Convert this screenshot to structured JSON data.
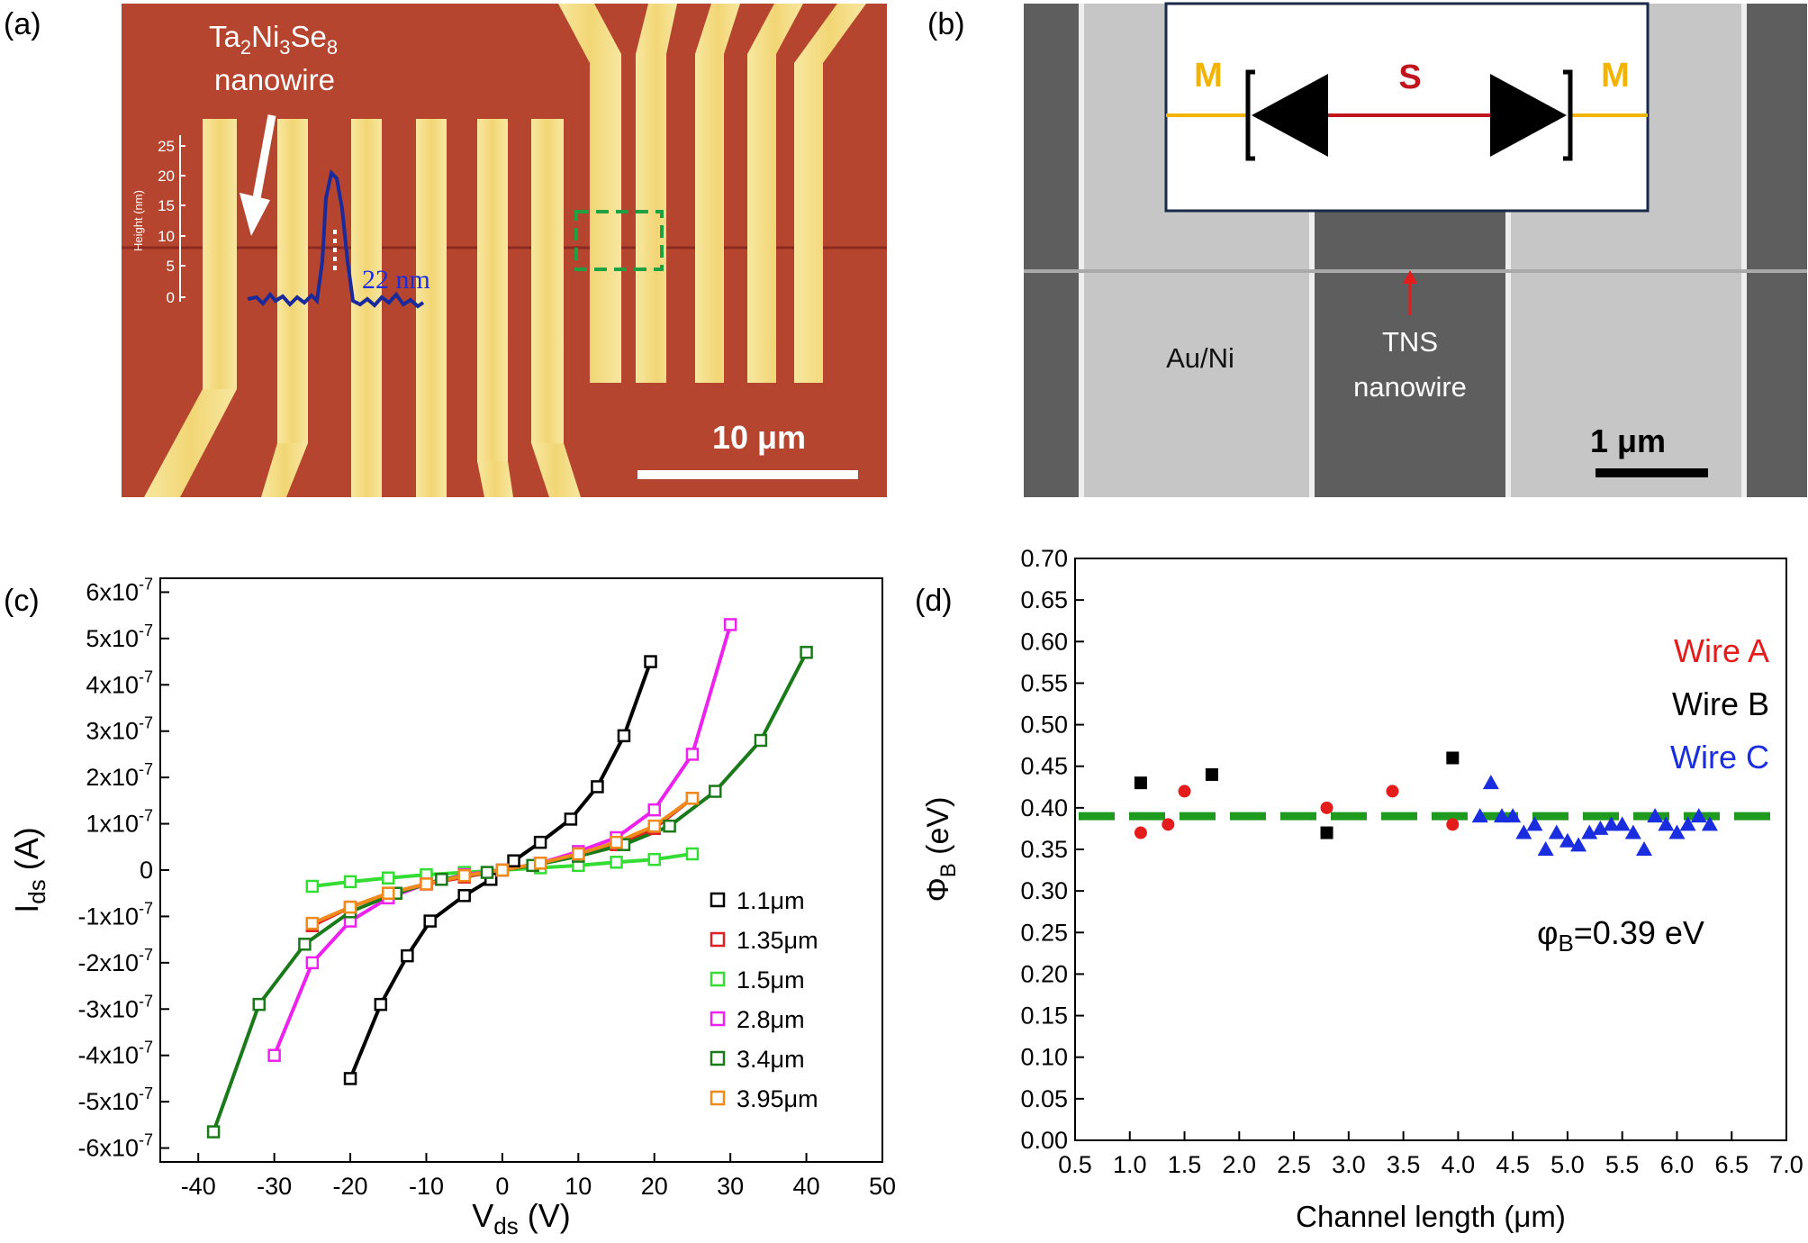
{
  "panels": {
    "a": {
      "label": "(a)",
      "material_main": "Ta",
      "material_sub1": "2",
      "material_mid": "Ni",
      "material_sub2": "3",
      "material_end": "Se",
      "material_sub3": "8",
      "nanowire_word": "nanowire",
      "height_axis_label": "Height (nm)",
      "height_ticks": [
        "25",
        "20",
        "15",
        "10",
        "5",
        "0"
      ],
      "profile_annotation": "22 nm",
      "scale_bar": "10 μm"
    },
    "b": {
      "label": "(b)",
      "inset_left": "M",
      "inset_center": "S",
      "inset_right": "M",
      "electrode_label": "Au/Ni",
      "wire_label_1": "TNS",
      "wire_label_2": "nanowire",
      "scale_bar": "1 μm"
    },
    "c": {
      "label": "(c)"
    },
    "d": {
      "label": "(d)",
      "phi_label_main": "φ",
      "phi_label_sub": "B",
      "phi_label_value": "=0.39 eV"
    }
  },
  "colors": {
    "afm_bg": "#b5452f",
    "electrode": "#f3dd82",
    "sem_bg": "#6a6a6a",
    "sem_electrode": "#c9c9c9",
    "green_dash": "#1e9a1e"
  },
  "chart_data": [
    {
      "type": "line",
      "title": "",
      "xlabel_main": "V",
      "xlabel_sub": "ds",
      "xlabel_unit": " (V)",
      "ylabel_main": "I",
      "ylabel_sub": "ds",
      "ylabel_unit": " (A)",
      "xlim": [
        -45,
        50
      ],
      "ylim": [
        -6.3e-07,
        6.3e-07
      ],
      "xticks": [
        -40,
        -30,
        -20,
        -10,
        0,
        10,
        20,
        30,
        40,
        50
      ],
      "xtick_labels": [
        "-40",
        "-30",
        "-20",
        "-10",
        "0",
        "10",
        "20",
        "30",
        "40",
        "50"
      ],
      "yticks_e7": [
        6,
        5,
        4,
        3,
        2,
        1,
        0,
        -1,
        -2,
        -3,
        -4,
        -5,
        -6
      ],
      "ytick_labels": [
        "6x10-7",
        "5x10-7",
        "4x10-7",
        "3x10-7",
        "2x10-7",
        "1x10-7",
        "0",
        "-1x10-7",
        "-2x10-7",
        "-3x10-7",
        "-4x10-7",
        "-5x10-7",
        "-6x10-7"
      ],
      "legend_position": "bottom-right",
      "series": [
        {
          "name": "1.1μm",
          "color": "#000000",
          "x": [
            -20,
            -16,
            -12.5,
            -9.5,
            -5,
            -1.5,
            1.5,
            5,
            9,
            12.5,
            16,
            19.5
          ],
          "y": [
            -4.5,
            -2.9,
            -1.85,
            -1.1,
            -0.55,
            -0.2,
            0.2,
            0.6,
            1.1,
            1.8,
            2.9,
            4.5
          ]
        },
        {
          "name": "1.35μm",
          "color": "#e02020",
          "x": [
            -25,
            -20,
            -15,
            -10,
            -5,
            0,
            5,
            10,
            15,
            20,
            25
          ],
          "y": [
            -1.2,
            -0.8,
            -0.5,
            -0.3,
            -0.15,
            0,
            0.15,
            0.3,
            0.55,
            0.9,
            1.55
          ]
        },
        {
          "name": "1.5μm",
          "color": "#33dd33",
          "x": [
            -25,
            -20,
            -15,
            -10,
            -5,
            0,
            5,
            10,
            15,
            20,
            25
          ],
          "y": [
            -0.35,
            -0.25,
            -0.17,
            -0.1,
            -0.05,
            0,
            0.05,
            0.1,
            0.17,
            0.23,
            0.35
          ]
        },
        {
          "name": "2.8μm",
          "color": "#ee22ee",
          "x": [
            -30,
            -25,
            -20,
            -15,
            -10,
            -5,
            0,
            5,
            10,
            15,
            20,
            25,
            30
          ],
          "y": [
            -4.0,
            -2.0,
            -1.1,
            -0.6,
            -0.3,
            -0.1,
            0,
            0.15,
            0.4,
            0.7,
            1.3,
            2.5,
            5.3
          ]
        },
        {
          "name": "3.4μm",
          "color": "#1a7a1a",
          "x": [
            -38,
            -32,
            -26,
            -20,
            -14,
            -8,
            -2,
            4,
            10,
            16,
            22,
            28,
            34,
            40
          ],
          "y": [
            -5.65,
            -2.9,
            -1.6,
            -0.9,
            -0.5,
            -0.2,
            -0.05,
            0.1,
            0.3,
            0.55,
            0.95,
            1.7,
            2.8,
            4.7
          ]
        },
        {
          "name": "3.95μm",
          "color": "#f08a1a",
          "x": [
            -25,
            -20,
            -15,
            -10,
            -5,
            0,
            5,
            10,
            15,
            20,
            25
          ],
          "y": [
            -1.15,
            -0.8,
            -0.5,
            -0.3,
            -0.12,
            0,
            0.15,
            0.35,
            0.6,
            0.95,
            1.55
          ]
        }
      ]
    },
    {
      "type": "scatter",
      "title": "",
      "xlabel": "Channel length (μm)",
      "ylabel_main": "Φ",
      "ylabel_sub": "B",
      "ylabel_unit": " (eV)",
      "xlim": [
        0.5,
        7.0
      ],
      "ylim": [
        0.0,
        0.7
      ],
      "xticks": [
        0.5,
        1.0,
        1.5,
        2.0,
        2.5,
        3.0,
        3.5,
        4.0,
        4.5,
        5.0,
        5.5,
        6.0,
        6.5,
        7.0
      ],
      "xtick_labels": [
        "0.5",
        "1.0",
        "1.5",
        "2.0",
        "2.5",
        "3.0",
        "3.5",
        "4.0",
        "4.5",
        "5.0",
        "5.5",
        "6.0",
        "6.5",
        "7.0"
      ],
      "yticks": [
        0.0,
        0.05,
        0.1,
        0.15,
        0.2,
        0.25,
        0.3,
        0.35,
        0.4,
        0.45,
        0.5,
        0.55,
        0.6,
        0.65,
        0.7
      ],
      "ytick_labels": [
        "0.00",
        "0.05",
        "0.10",
        "0.15",
        "0.20",
        "0.25",
        "0.30",
        "0.35",
        "0.40",
        "0.45",
        "0.50",
        "0.55",
        "0.60",
        "0.65",
        "0.70"
      ],
      "reference_line": 0.39,
      "legend_position": "top-right",
      "series": [
        {
          "name": "Wire A",
          "color": "#e51c1c",
          "marker": "circle",
          "x": [
            1.1,
            1.35,
            1.5,
            2.8,
            3.4,
            3.95
          ],
          "y": [
            0.37,
            0.38,
            0.42,
            0.4,
            0.42,
            0.38
          ]
        },
        {
          "name": "Wire B",
          "color": "#000000",
          "marker": "square",
          "x": [
            1.1,
            1.75,
            2.8,
            3.95
          ],
          "y": [
            0.43,
            0.44,
            0.37,
            0.46
          ]
        },
        {
          "name": "Wire C",
          "color": "#1a2ee0",
          "marker": "triangle",
          "x": [
            4.2,
            4.3,
            4.4,
            4.5,
            4.6,
            4.7,
            4.8,
            4.9,
            5.0,
            5.1,
            5.2,
            5.3,
            5.4,
            5.5,
            5.6,
            5.7,
            5.8,
            5.9,
            6.0,
            6.1,
            6.2,
            6.3
          ],
          "y": [
            0.39,
            0.43,
            0.39,
            0.39,
            0.37,
            0.38,
            0.35,
            0.37,
            0.36,
            0.355,
            0.37,
            0.375,
            0.38,
            0.38,
            0.37,
            0.35,
            0.39,
            0.38,
            0.37,
            0.38,
            0.39,
            0.38
          ]
        }
      ]
    }
  ]
}
